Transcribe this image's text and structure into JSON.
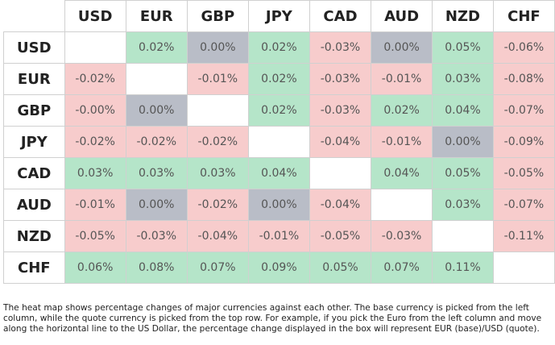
{
  "table": {
    "columns": [
      "USD",
      "EUR",
      "GBP",
      "JPY",
      "CAD",
      "AUD",
      "NZD",
      "CHF"
    ],
    "rows": [
      {
        "label": "USD",
        "cells": [
          null,
          "0.02%",
          "0.00%",
          "0.02%",
          "-0.03%",
          "0.00%",
          "0.05%",
          "-0.06%"
        ],
        "colors": [
          "#ffffff",
          "#b5e5c9",
          "#b9bdc7",
          "#b5e5c9",
          "#f7cccc",
          "#b9bdc7",
          "#b5e5c9",
          "#f7cccc"
        ]
      },
      {
        "label": "EUR",
        "cells": [
          "-0.02%",
          null,
          "-0.01%",
          "0.02%",
          "-0.03%",
          "-0.01%",
          "0.03%",
          "-0.08%"
        ],
        "colors": [
          "#f7cccc",
          "#ffffff",
          "#f7cccc",
          "#b5e5c9",
          "#f7cccc",
          "#f7cccc",
          "#b5e5c9",
          "#f7cccc"
        ]
      },
      {
        "label": "GBP",
        "cells": [
          "-0.00%",
          "0.00%",
          null,
          "0.02%",
          "-0.03%",
          "0.02%",
          "0.04%",
          "-0.07%"
        ],
        "colors": [
          "#f7cccc",
          "#b9bdc7",
          "#ffffff",
          "#b5e5c9",
          "#f7cccc",
          "#b5e5c9",
          "#b5e5c9",
          "#f7cccc"
        ]
      },
      {
        "label": "JPY",
        "cells": [
          "-0.02%",
          "-0.02%",
          "-0.02%",
          null,
          "-0.04%",
          "-0.01%",
          "0.00%",
          "-0.09%"
        ],
        "colors": [
          "#f7cccc",
          "#f7cccc",
          "#f7cccc",
          "#ffffff",
          "#f7cccc",
          "#f7cccc",
          "#b9bdc7",
          "#f7cccc"
        ]
      },
      {
        "label": "CAD",
        "cells": [
          "0.03%",
          "0.03%",
          "0.03%",
          "0.04%",
          null,
          "0.04%",
          "0.05%",
          "-0.05%"
        ],
        "colors": [
          "#b5e5c9",
          "#b5e5c9",
          "#b5e5c9",
          "#b5e5c9",
          "#ffffff",
          "#b5e5c9",
          "#b5e5c9",
          "#f7cccc"
        ]
      },
      {
        "label": "AUD",
        "cells": [
          "-0.01%",
          "0.00%",
          "-0.02%",
          "0.00%",
          "-0.04%",
          null,
          "0.03%",
          "-0.07%"
        ],
        "colors": [
          "#f7cccc",
          "#b9bdc7",
          "#f7cccc",
          "#b9bdc7",
          "#f7cccc",
          "#ffffff",
          "#b5e5c9",
          "#f7cccc"
        ]
      },
      {
        "label": "NZD",
        "cells": [
          "-0.05%",
          "-0.03%",
          "-0.04%",
          "-0.01%",
          "-0.05%",
          "-0.03%",
          null,
          "-0.11%"
        ],
        "colors": [
          "#f7cccc",
          "#f7cccc",
          "#f7cccc",
          "#f7cccc",
          "#f7cccc",
          "#f7cccc",
          "#ffffff",
          "#f7cccc"
        ]
      },
      {
        "label": "CHF",
        "cells": [
          "0.06%",
          "0.08%",
          "0.07%",
          "0.09%",
          "0.05%",
          "0.07%",
          "0.11%",
          null
        ],
        "colors": [
          "#b5e5c9",
          "#b5e5c9",
          "#b5e5c9",
          "#b5e5c9",
          "#b5e5c9",
          "#b5e5c9",
          "#b5e5c9",
          "#ffffff"
        ]
      }
    ]
  },
  "caption": "The heat map shows percentage changes of major currencies against each other. The base currency is picked from the left column, while the quote currency is picked from the top row. For example, if you pick the Euro from the left column and move along the horizontal line to the US Dollar, the percentage change displayed in the box will represent EUR (base)/USD (quote)."
}
